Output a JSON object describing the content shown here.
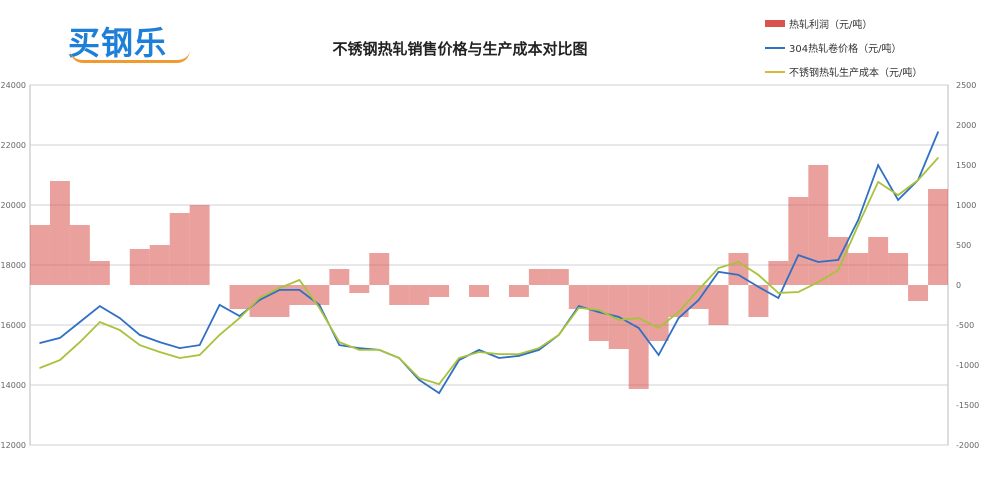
{
  "logo": {
    "text": "买钢乐"
  },
  "chart_data": {
    "type": "bar+line",
    "title": "不锈钢热轧销售价格与生产成本对比图",
    "legend_placement": "top-right",
    "grid": true,
    "left_axis": {
      "ylim": [
        12000,
        24000
      ],
      "ticks": [
        "24000",
        "22000",
        "20000",
        "18000",
        "16000",
        "14000",
        "12000"
      ]
    },
    "right_axis": {
      "ylim": [
        -2000,
        2500
      ],
      "ticks": [
        "2500",
        "2000",
        "1500",
        "1000",
        "500",
        "0",
        "-500",
        "-1000",
        "-1500",
        "-2000"
      ]
    },
    "series": [
      {
        "name": "热轧利润（元/吨）",
        "type": "bar",
        "axis": "right",
        "color": "#d9534f",
        "values": [
          750,
          1300,
          750,
          300,
          0,
          450,
          500,
          900,
          1000,
          0,
          -300,
          -400,
          -400,
          -250,
          -250,
          200,
          -100,
          400,
          -250,
          -250,
          -150,
          0,
          -150,
          0,
          -150,
          200,
          200,
          -300,
          -700,
          -800,
          -1300,
          -700,
          -400,
          -300,
          -500,
          400,
          -400,
          300,
          1100,
          1500,
          600,
          400,
          600,
          400,
          -200,
          1200
        ]
      },
      {
        "name": "304热轧卷价格（元/吨）",
        "type": "line",
        "axis": "left",
        "color": "#2f6fc4",
        "values": [
          15400,
          15570,
          16100,
          16630,
          16230,
          15670,
          15430,
          15230,
          15330,
          16670,
          16300,
          16830,
          17170,
          17170,
          16670,
          15330,
          15230,
          15170,
          14900,
          14170,
          13730,
          14830,
          15170,
          14900,
          14970,
          15170,
          15670,
          16630,
          16430,
          16270,
          15900,
          15000,
          16230,
          16830,
          17770,
          17670,
          17270,
          16900,
          18330,
          18100,
          18170,
          19500,
          21330,
          20170,
          20830,
          22430
        ]
      },
      {
        "name": "不锈钢热轧生产成本（元/吨）",
        "type": "line",
        "axis": "left",
        "color": "#a8c23a",
        "values": [
          14570,
          14830,
          15430,
          16100,
          15830,
          15330,
          15100,
          14900,
          15000,
          15670,
          16230,
          16900,
          17230,
          17500,
          16570,
          15430,
          15170,
          15170,
          14900,
          14230,
          14030,
          14900,
          15100,
          15030,
          15030,
          15230,
          15670,
          16570,
          16500,
          16170,
          16230,
          15900,
          16430,
          17170,
          17900,
          18100,
          17670,
          17070,
          17100,
          17430,
          17830,
          19330,
          20770,
          20330,
          20830,
          21570
        ]
      }
    ]
  }
}
